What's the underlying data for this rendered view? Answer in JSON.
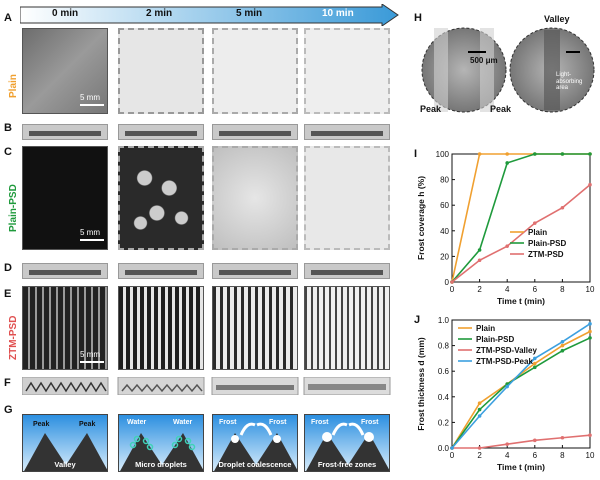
{
  "timeline": {
    "t0": "0 min",
    "t2": "2 min",
    "t5": "5 min",
    "t10": "10 min"
  },
  "panels": {
    "A": "A",
    "B": "B",
    "C": "C",
    "D": "D",
    "E": "E",
    "F": "F",
    "G": "G",
    "H": "H",
    "I": "I",
    "J": "J"
  },
  "rows": {
    "plain": "Plain",
    "plain_psd": "Plain-PSD",
    "ztm_psd": "ZTM-PSD"
  },
  "rowColors": {
    "plain": "#f0a030",
    "plain_psd": "#1f9a3c",
    "ztm_psd": "#e05050"
  },
  "scale_5mm": "5 mm",
  "schematic": {
    "peak": "Peak",
    "valley": "Valley",
    "water": "Water",
    "frost": "Frost",
    "cap1": "Valley",
    "cap2": "Micro droplets",
    "cap3": "Droplet coalescence",
    "cap4": "Frost-free zones"
  },
  "h_panel": {
    "valley": "Valley",
    "scale": "500 μm",
    "peak_left": "Peak",
    "peak_right": "Peak",
    "light": "Light-absorbing area"
  },
  "chart_data": [
    {
      "type": "line",
      "panel": "I",
      "xlabel": "Time t (min)",
      "ylabel": "Frost coverage h (%)",
      "xlim": [
        0,
        10
      ],
      "ylim": [
        0,
        100
      ],
      "xticks": [
        0,
        2,
        4,
        6,
        8,
        10
      ],
      "yticks": [
        0,
        20,
        40,
        60,
        80,
        100
      ],
      "legend_position": "center-right",
      "series": [
        {
          "name": "Plain",
          "color": "#f0a030",
          "x": [
            0,
            2,
            4,
            6,
            8,
            10
          ],
          "y": [
            0,
            100,
            100,
            100,
            100,
            100
          ]
        },
        {
          "name": "Plain-PSD",
          "color": "#1f9a3c",
          "x": [
            0,
            2,
            4,
            6,
            8,
            10
          ],
          "y": [
            0,
            25,
            93,
            100,
            100,
            100
          ]
        },
        {
          "name": "ZTM-PSD",
          "color": "#e07070",
          "x": [
            0,
            2,
            4,
            6,
            8,
            10
          ],
          "y": [
            0,
            17,
            28,
            46,
            58,
            76
          ]
        }
      ]
    },
    {
      "type": "line",
      "panel": "J",
      "xlabel": "Time t (min)",
      "ylabel": "Frost thickness d (mm)",
      "xlim": [
        0,
        10
      ],
      "ylim": [
        0,
        1.0
      ],
      "xticks": [
        0,
        2,
        4,
        6,
        8,
        10
      ],
      "yticks": [
        0.0,
        0.2,
        0.4,
        0.6,
        0.8,
        1.0
      ],
      "legend_position": "top-left",
      "series": [
        {
          "name": "Plain",
          "color": "#f0a030",
          "x": [
            0,
            2,
            4,
            6,
            8,
            10
          ],
          "y": [
            0,
            0.35,
            0.5,
            0.66,
            0.8,
            0.91
          ]
        },
        {
          "name": "Plain-PSD",
          "color": "#1f9a3c",
          "x": [
            0,
            2,
            4,
            6,
            8,
            10
          ],
          "y": [
            0,
            0.3,
            0.5,
            0.63,
            0.76,
            0.86
          ]
        },
        {
          "name": "ZTM-PSD-Valley",
          "color": "#e07070",
          "x": [
            0,
            2,
            4,
            6,
            8,
            10
          ],
          "y": [
            0,
            0,
            0.03,
            0.06,
            0.08,
            0.1
          ]
        },
        {
          "name": "ZTM-PSD-Peak",
          "color": "#3ca0e0",
          "x": [
            0,
            2,
            4,
            6,
            8,
            10
          ],
          "y": [
            0,
            0.25,
            0.48,
            0.7,
            0.83,
            0.97
          ]
        }
      ]
    }
  ]
}
